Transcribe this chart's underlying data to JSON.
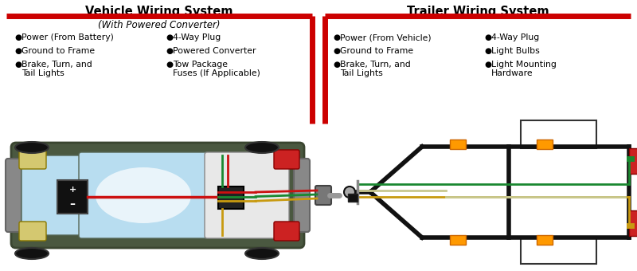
{
  "bg_color": "#ffffff",
  "left_title": "Vehicle Wiring System",
  "right_title": "Trailer Wiring System",
  "left_subtitle": "(With Powered Converter)",
  "left_col1": [
    "Power (From Battery)",
    "Ground to Frame",
    "Brake, Turn, and",
    "Tail Lights"
  ],
  "left_col2": [
    "4-Way Plug",
    "Powered Converter",
    "Tow Package",
    "Fuses (If Applicable)"
  ],
  "right_col1": [
    "Power (From Vehicle)",
    "Ground to Frame",
    "Brake, Turn, and",
    "Tail Lights"
  ],
  "right_col2": [
    "4-Way Plug",
    "Light Bulbs",
    "Light Mounting",
    "Hardware"
  ],
  "red_color": "#cc0000",
  "title_fontsize": 10.5,
  "bullet_fontsize": 7.8,
  "subtitle_fontsize": 8.5,
  "car_body_color": "#4a5840",
  "car_edge_color": "#3a4530",
  "window_color": "#b8ddf0",
  "bumper_color": "#888888",
  "headlight_color": "#d4c870",
  "taillight_color": "#cc2222",
  "trunk_color": "#e8e8e8",
  "battery_color": "#111111",
  "converter_color": "#222222",
  "wire_red": "#cc1111",
  "wire_green": "#1a8830",
  "wire_yellow": "#c89a10",
  "wire_white": "#ccccaa",
  "frame_color": "#111111",
  "orange_color": "#ff9900"
}
